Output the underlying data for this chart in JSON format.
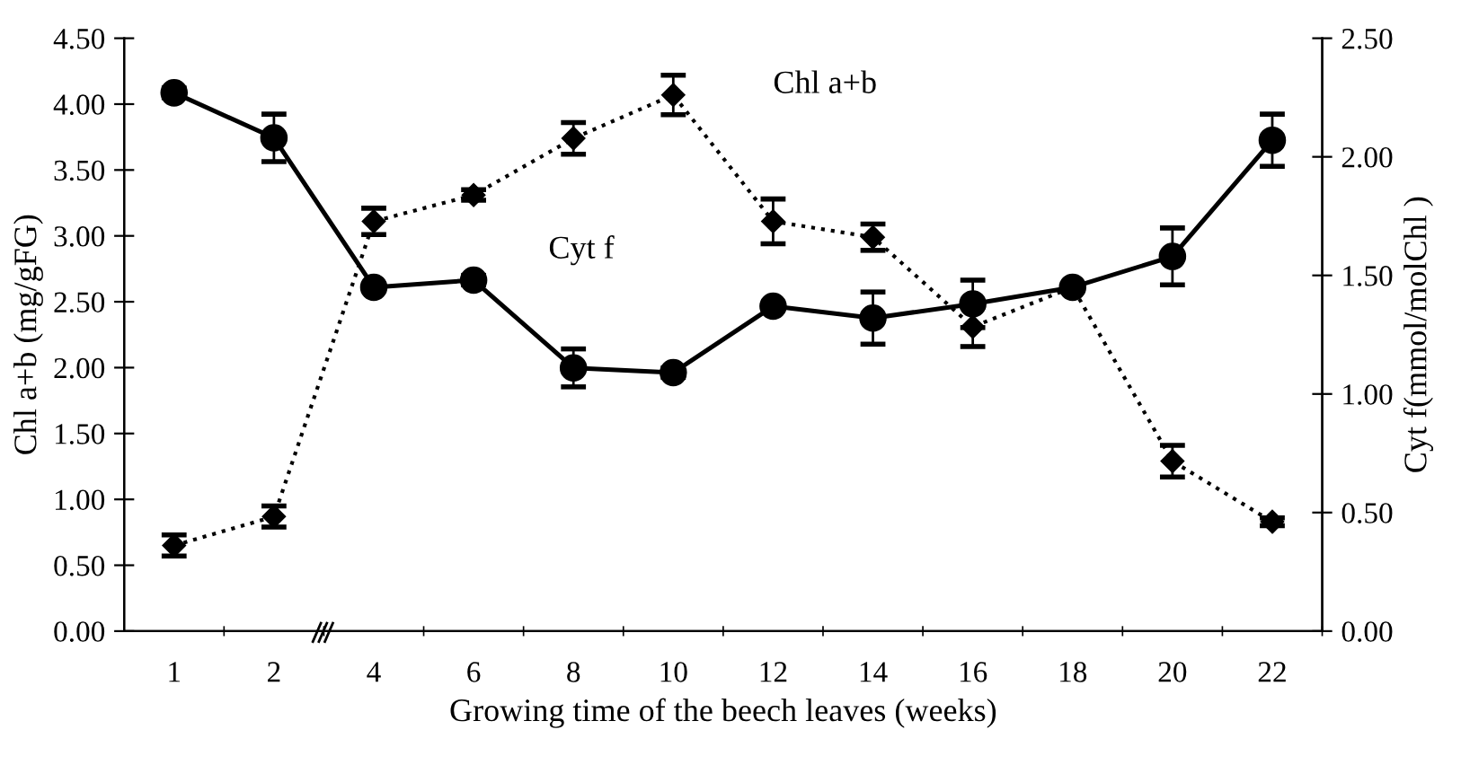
{
  "chart_data": {
    "type": "line",
    "xlabel": "Growing time of the beech leaves (weeks)",
    "ylabel": "Chl a+b (mg/gFG)",
    "y2label": "Cyt f(mmol/molChl )",
    "categories": [
      "1",
      "2",
      "4",
      "6",
      "8",
      "10",
      "12",
      "14",
      "16",
      "18",
      "20",
      "22"
    ],
    "series": [
      {
        "name": "Chl a+b",
        "color": "#000000",
        "marker": "diamond",
        "line_style": "dotted",
        "values": [
          0.65,
          0.87,
          3.11,
          3.31,
          3.74,
          4.07,
          3.11,
          2.99,
          2.31,
          2.61,
          1.29,
          0.83
        ],
        "errors": [
          0.08,
          0.08,
          0.1,
          0.04,
          0.12,
          0.15,
          0.17,
          0.1,
          0.15,
          null,
          0.12,
          0.03
        ]
      },
      {
        "name": "Cyt f",
        "axis": "y2",
        "color": "#000000",
        "marker": "circle",
        "line_style": "solid",
        "values": [
          2.27,
          2.08,
          1.45,
          1.48,
          1.11,
          1.09,
          1.37,
          1.32,
          1.38,
          1.45,
          1.58,
          2.07
        ],
        "errors": [
          0.02,
          0.1,
          null,
          0.02,
          0.08,
          0.02,
          null,
          0.11,
          0.1,
          null,
          0.12,
          0.11
        ]
      }
    ],
    "ylim": [
      0,
      4.5
    ],
    "yticks": [
      {
        "value": 0,
        "label": "0.00"
      },
      {
        "value": 0.5,
        "label": "0.50"
      },
      {
        "value": 1,
        "label": "1.00"
      },
      {
        "value": 1.5,
        "label": "1.50"
      },
      {
        "value": 2,
        "label": "2.00"
      },
      {
        "value": 2.5,
        "label": "2.50"
      },
      {
        "value": 3,
        "label": "3.00"
      },
      {
        "value": 3.5,
        "label": "3.50"
      },
      {
        "value": 4,
        "label": "4.00"
      },
      {
        "value": 4.5,
        "label": "4.50"
      }
    ],
    "y2lim": [
      0,
      2.5
    ],
    "y2ticks": [
      {
        "value": 0,
        "label": "0.00"
      },
      {
        "value": 0.5,
        "label": "0.50"
      },
      {
        "value": 1,
        "label": "1.00"
      },
      {
        "value": 1.5,
        "label": "1.50"
      },
      {
        "value": 2,
        "label": "2.00"
      },
      {
        "value": 2.5,
        "label": "2.50"
      }
    ],
    "grid": false,
    "legend": false
  }
}
